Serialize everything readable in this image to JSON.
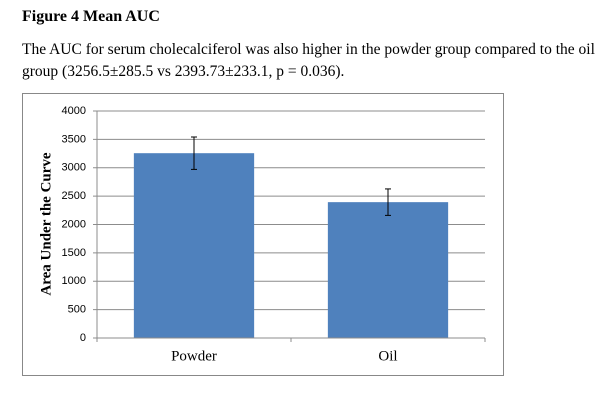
{
  "title": "Figure 4 Mean AUC",
  "paragraph": "The AUC for serum cholecalciferol was also higher in the powder group compared to the oil group (3256.5±285.5 vs 2393.73±233.1, p = 0.036).",
  "chart_data": {
    "type": "bar",
    "ylabel": "Area Under the Curve",
    "categories": [
      "Powder",
      "Oil"
    ],
    "values": [
      3256.5,
      2393.73
    ],
    "errors": [
      285.5,
      233.1
    ],
    "color": "#4f81bd",
    "ylim": [
      0,
      4000
    ],
    "yticks": [
      0,
      500,
      1000,
      1500,
      2000,
      2500,
      3000,
      3500,
      4000
    ],
    "grid": true
  }
}
